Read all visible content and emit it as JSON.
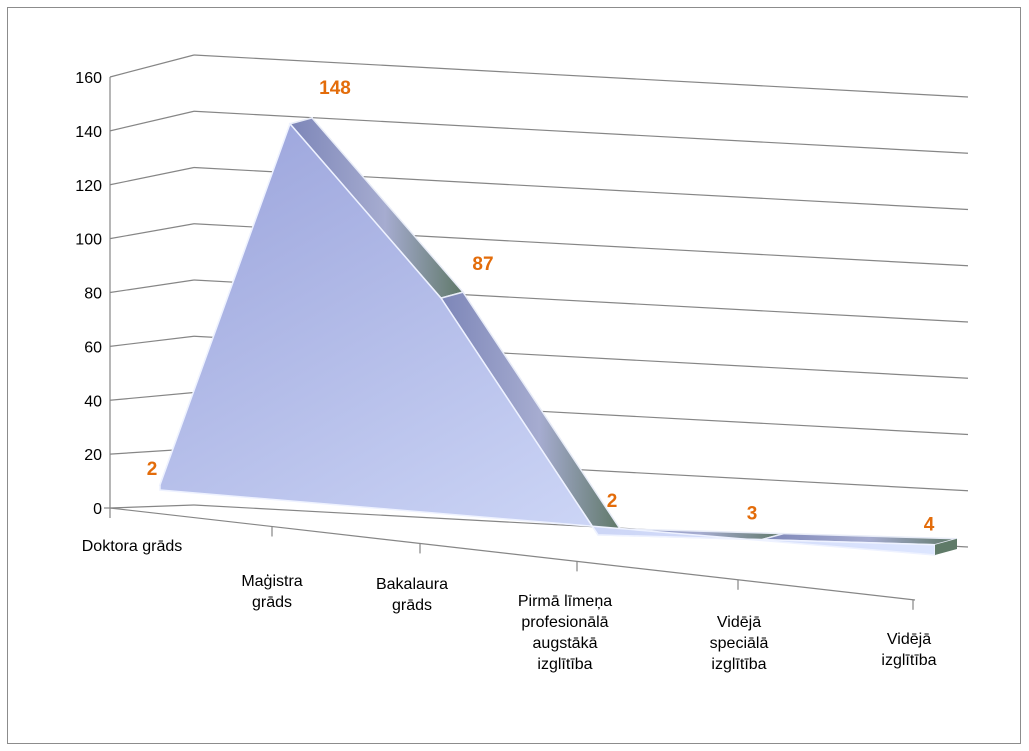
{
  "chart_data": {
    "type": "area",
    "three_d": true,
    "title": "",
    "xlabel": "",
    "ylabel": "",
    "ylim": [
      0,
      160
    ],
    "yticks": [
      "0",
      "20",
      "40",
      "60",
      "80",
      "100",
      "120",
      "140",
      "160"
    ],
    "grid": true,
    "legend": "none",
    "categories": [
      "Doktora grāds",
      "Maģistra grāds",
      "Bakalaura grāds",
      "Pirmā līmeņa profesionālā augstākā izglītība",
      "Vidējā speciālā izglītība",
      "Vidējā izglītība"
    ],
    "category_lines": [
      [
        "Doktora grāds"
      ],
      [
        "Maģistra",
        "grāds"
      ],
      [
        "Bakalaura",
        "grāds"
      ],
      [
        "Pirmā līmeņa",
        "profesionālā",
        "augstākā",
        "izglītība"
      ],
      [
        "Vidējā",
        "speciālā",
        "izglītība"
      ],
      [
        "Vidējā",
        "izglītība"
      ]
    ],
    "series": [
      {
        "values": [
          2,
          148,
          87,
          2,
          3,
          4
        ]
      }
    ],
    "data_labels": [
      "2",
      "148",
      "87",
      "2",
      "3",
      "4"
    ],
    "colors": {
      "label": "#e36c0a",
      "gridline": "#868686",
      "area_light": "#dbe5ff",
      "area_dark": "#9aa6dc",
      "top_face": "#7f87b0",
      "end_face": "#5f7a68"
    }
  }
}
